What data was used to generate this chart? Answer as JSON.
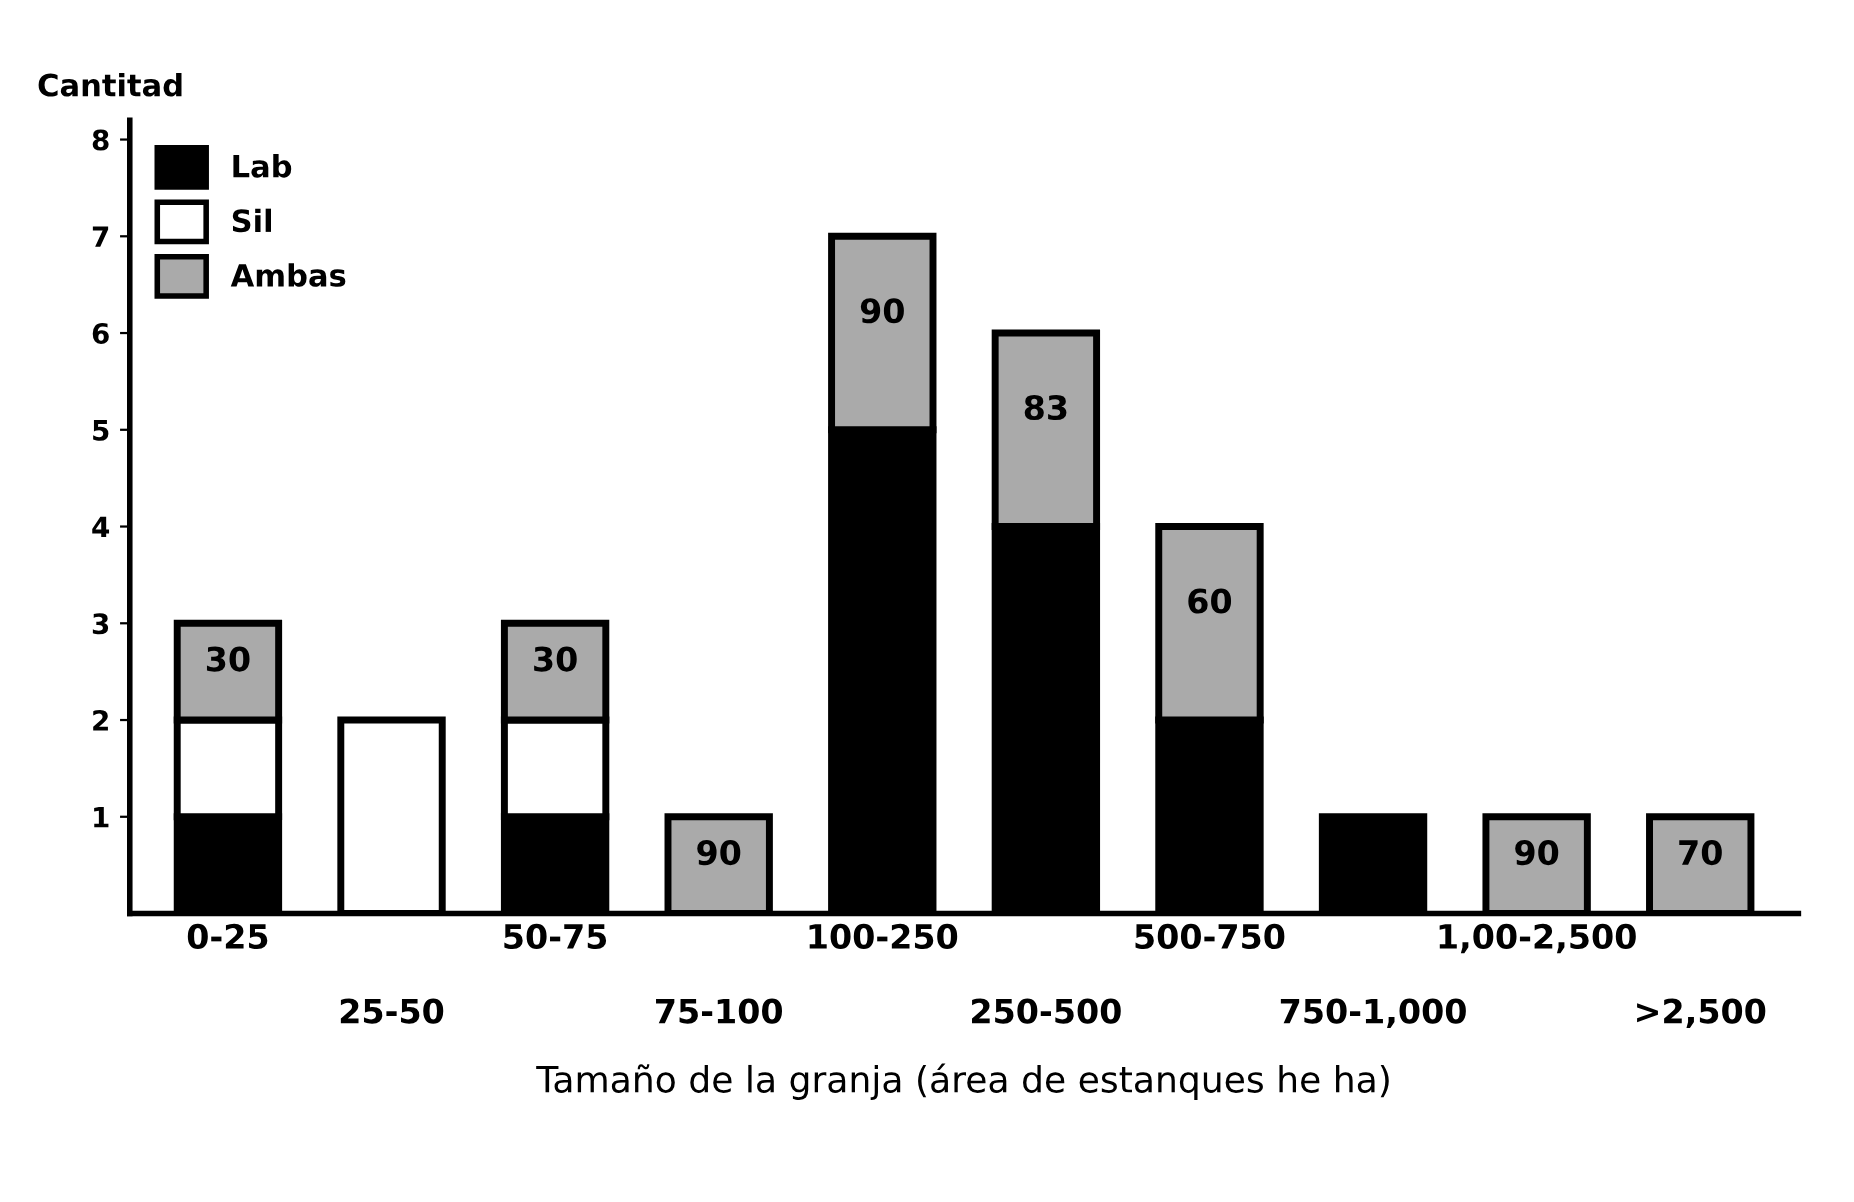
{
  "chart_data": {
    "type": "bar",
    "stacked": true,
    "ylabel": "Cantitad",
    "xlabel": "Tamaño de la granja (área de estanques he ha)",
    "categories": [
      "0-25",
      "25-50",
      "50-75",
      "75-100",
      "100-250",
      "250-500",
      "500-750",
      "750-1,000",
      "1,00-2,500",
      ">2,500"
    ],
    "series": [
      {
        "name": "Lab",
        "color": "#000000",
        "values": [
          1,
          0,
          1,
          0,
          5,
          4,
          2,
          1,
          0,
          0
        ]
      },
      {
        "name": "Sil",
        "color": "#ffffff",
        "values": [
          1,
          2,
          1,
          0,
          0,
          0,
          0,
          0,
          0,
          0
        ]
      },
      {
        "name": "Ambas",
        "color": "#aaaaaa",
        "values": [
          1,
          0,
          1,
          1,
          2,
          2,
          2,
          0,
          1,
          1
        ]
      }
    ],
    "ylim": [
      0,
      8.2
    ],
    "yticks": [
      1,
      2,
      3,
      4,
      5,
      6,
      7,
      8
    ],
    "grid": false,
    "legend": "top left",
    "annotations": [
      "30",
      "30",
      "90",
      "90",
      "83",
      "60",
      "90",
      "70"
    ]
  }
}
